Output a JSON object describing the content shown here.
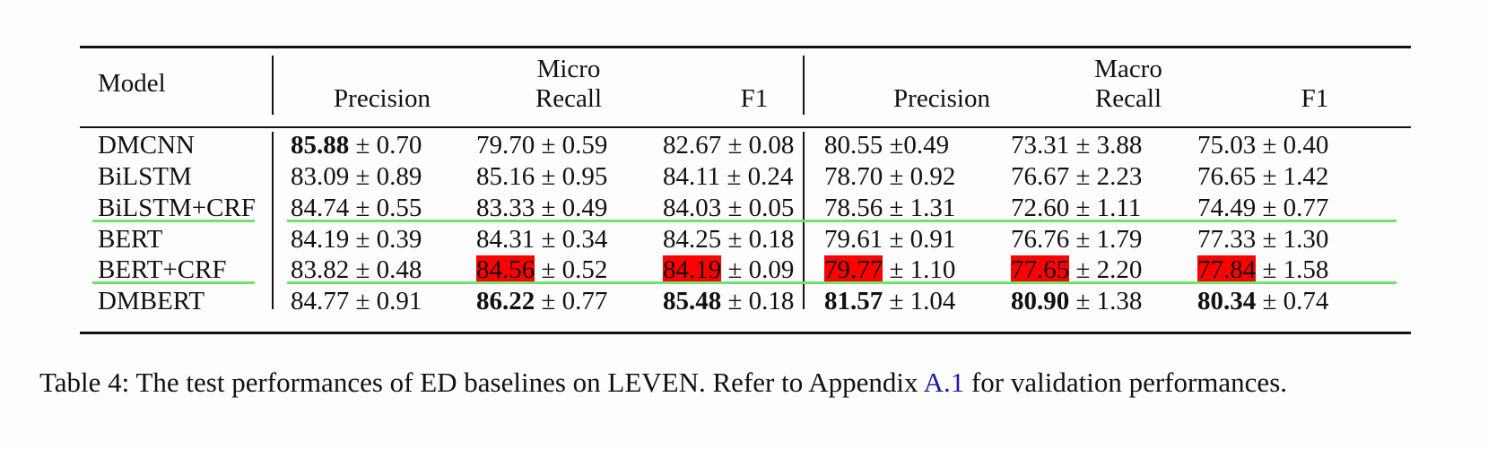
{
  "table": {
    "header": {
      "model": "Model",
      "groups": [
        "Micro",
        "Macro"
      ],
      "metrics": [
        "Precision",
        "Recall",
        "F1",
        "Precision",
        "Recall",
        "F1"
      ]
    },
    "rows": [
      {
        "model": "DMCNN",
        "cells": [
          {
            "mean": "85.88",
            "sd": "± 0.70",
            "bold": true,
            "highlight": false
          },
          {
            "mean": "79.70",
            "sd": "± 0.59",
            "bold": false,
            "highlight": false
          },
          {
            "mean": "82.67",
            "sd": "± 0.08",
            "bold": false,
            "highlight": false
          },
          {
            "mean": "80.55",
            "sd": "±0.49",
            "bold": false,
            "highlight": false
          },
          {
            "mean": "73.31",
            "sd": "± 3.88",
            "bold": false,
            "highlight": false
          },
          {
            "mean": "75.03",
            "sd": "± 0.40",
            "bold": false,
            "highlight": false
          }
        ]
      },
      {
        "model": "BiLSTM",
        "cells": [
          {
            "mean": "83.09",
            "sd": "± 0.89",
            "bold": false,
            "highlight": false
          },
          {
            "mean": "85.16",
            "sd": "± 0.95",
            "bold": false,
            "highlight": false
          },
          {
            "mean": "84.11",
            "sd": "± 0.24",
            "bold": false,
            "highlight": false
          },
          {
            "mean": "78.70",
            "sd": "± 0.92",
            "bold": false,
            "highlight": false
          },
          {
            "mean": "76.67",
            "sd": "± 2.23",
            "bold": false,
            "highlight": false
          },
          {
            "mean": "76.65",
            "sd": "± 1.42",
            "bold": false,
            "highlight": false
          }
        ]
      },
      {
        "model": "BiLSTM+CRF",
        "underline": true,
        "cells": [
          {
            "mean": "84.74",
            "sd": "± 0.55",
            "bold": false,
            "highlight": false
          },
          {
            "mean": "83.33",
            "sd": "± 0.49",
            "bold": false,
            "highlight": false
          },
          {
            "mean": "84.03",
            "sd": "± 0.05",
            "bold": false,
            "highlight": false
          },
          {
            "mean": "78.56",
            "sd": "± 1.31",
            "bold": false,
            "highlight": false
          },
          {
            "mean": "72.60",
            "sd": "± 1.11",
            "bold": false,
            "highlight": false
          },
          {
            "mean": "74.49",
            "sd": "± 0.77",
            "bold": false,
            "highlight": false
          }
        ]
      },
      {
        "model": "BERT",
        "cells": [
          {
            "mean": "84.19",
            "sd": "± 0.39",
            "bold": false,
            "highlight": false
          },
          {
            "mean": "84.31",
            "sd": "± 0.34",
            "bold": false,
            "highlight": false
          },
          {
            "mean": "84.25",
            "sd": "± 0.18",
            "bold": false,
            "highlight": false
          },
          {
            "mean": "79.61",
            "sd": "± 0.91",
            "bold": false,
            "highlight": false
          },
          {
            "mean": "76.76",
            "sd": "± 1.79",
            "bold": false,
            "highlight": false
          },
          {
            "mean": "77.33",
            "sd": "± 1.30",
            "bold": false,
            "highlight": false
          }
        ]
      },
      {
        "model": "BERT+CRF",
        "underline": true,
        "cells": [
          {
            "mean": "83.82",
            "sd": "± 0.48",
            "bold": false,
            "highlight": false
          },
          {
            "mean": "84.56",
            "sd": "± 0.52",
            "bold": false,
            "highlight": true
          },
          {
            "mean": "84.19",
            "sd": "± 0.09",
            "bold": false,
            "highlight": true
          },
          {
            "mean": "79.77",
            "sd": "± 1.10",
            "bold": false,
            "highlight": true
          },
          {
            "mean": "77.65",
            "sd": "± 2.20",
            "bold": false,
            "highlight": true
          },
          {
            "mean": "77.84",
            "sd": "± 1.58",
            "bold": false,
            "highlight": true
          }
        ]
      },
      {
        "model": "DMBERT",
        "cells": [
          {
            "mean": "84.77",
            "sd": "± 0.91",
            "bold": false,
            "highlight": false
          },
          {
            "mean": "86.22",
            "sd": "± 0.77",
            "bold": true,
            "highlight": false
          },
          {
            "mean": "85.48",
            "sd": "± 0.18",
            "bold": true,
            "highlight": false
          },
          {
            "mean": "81.57",
            "sd": "± 1.04",
            "bold": true,
            "highlight": false
          },
          {
            "mean": "80.90",
            "sd": "± 1.38",
            "bold": true,
            "highlight": false
          },
          {
            "mean": "80.34",
            "sd": "± 0.74",
            "bold": true,
            "highlight": false
          }
        ]
      }
    ]
  },
  "caption": {
    "label": "Table 4:",
    "before_link": "The test performances of ED baselines on LEVEN. Refer to Appendix",
    "link": "A.1",
    "after_link": "for validation performances."
  },
  "colors": {
    "highlight": "#ff0000",
    "annotation_underline": "#6ee46e",
    "link": "#1a1aa6"
  }
}
